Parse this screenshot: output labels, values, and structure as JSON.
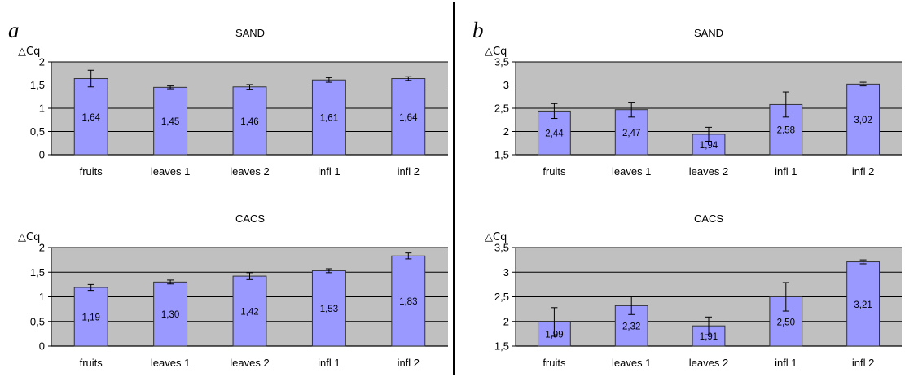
{
  "panels": [
    {
      "letter": "a"
    },
    {
      "letter": "b"
    }
  ],
  "colors": {
    "plot_area": "#c0c0c0",
    "bar_fill": "#9999ff",
    "bar_stroke": "#333333",
    "gridline": "#000000",
    "divider": "#000000"
  },
  "chart_data": [
    {
      "type": "bar",
      "panel": "a",
      "title": "SAND",
      "ylabel": "△Cq",
      "categories": [
        "fruits",
        "leaves 1",
        "leaves 2",
        "infl 1",
        "infl 2"
      ],
      "values": [
        1.64,
        1.45,
        1.46,
        1.61,
        1.64
      ],
      "data_labels": [
        "1,64",
        "1,45",
        "1,46",
        "1,61",
        "1,64"
      ],
      "error": [
        0.18,
        0.03,
        0.05,
        0.05,
        0.04
      ],
      "ylim": [
        0,
        2
      ],
      "yticks": [
        0,
        0.5,
        1,
        1.5,
        2
      ],
      "ytick_labels": [
        "0",
        "0,5",
        "1",
        "1,5",
        "2"
      ],
      "grid": true
    },
    {
      "type": "bar",
      "panel": "a",
      "title": "CACS",
      "ylabel": "△Cq",
      "categories": [
        "fruits",
        "leaves 1",
        "leaves 2",
        "infl 1",
        "infl 2"
      ],
      "values": [
        1.19,
        1.3,
        1.42,
        1.53,
        1.83
      ],
      "data_labels": [
        "1,19",
        "1,30",
        "1,42",
        "1,53",
        "1,83"
      ],
      "error": [
        0.06,
        0.04,
        0.07,
        0.04,
        0.06
      ],
      "ylim": [
        0,
        2
      ],
      "yticks": [
        0,
        0.5,
        1,
        1.5,
        2
      ],
      "ytick_labels": [
        "0",
        "0,5",
        "1",
        "1,5",
        "2"
      ],
      "grid": true
    },
    {
      "type": "bar",
      "panel": "b",
      "title": "SAND",
      "ylabel": "△Cq",
      "categories": [
        "fruits",
        "leaves 1",
        "leaves 2",
        "infl 1",
        "infl 2"
      ],
      "values": [
        2.44,
        2.47,
        1.94,
        2.58,
        3.02
      ],
      "data_labels": [
        "2,44",
        "2,47",
        "1,94",
        "2,58",
        "3,02"
      ],
      "error": [
        0.16,
        0.16,
        0.15,
        0.27,
        0.04
      ],
      "ylim": [
        1.5,
        3.5
      ],
      "yticks": [
        1.5,
        2,
        2.5,
        3,
        3.5
      ],
      "ytick_labels": [
        "1,5",
        "2",
        "2,5",
        "3",
        "3,5"
      ],
      "grid": true
    },
    {
      "type": "bar",
      "panel": "b",
      "title": "CACS",
      "ylabel": "△Cq",
      "categories": [
        "fruits",
        "leaves 1",
        "leaves 2",
        "infl 1",
        "infl 2"
      ],
      "values": [
        1.99,
        2.32,
        1.91,
        2.5,
        3.21
      ],
      "data_labels": [
        "1,99",
        "2,32",
        "1,91",
        "2,50",
        "3,21"
      ],
      "error": [
        0.29,
        0.18,
        0.18,
        0.29,
        0.04
      ],
      "ylim": [
        1.5,
        3.5
      ],
      "yticks": [
        1.5,
        2,
        2.5,
        3,
        3.5
      ],
      "ytick_labels": [
        "1,5",
        "2",
        "2,5",
        "3",
        "3,5"
      ],
      "grid": true
    }
  ]
}
